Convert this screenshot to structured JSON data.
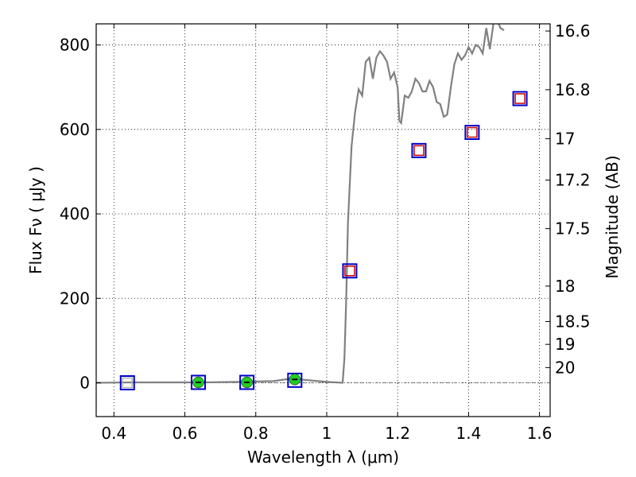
{
  "chart_data": {
    "type": "scatter",
    "xlabel": "Wavelength  λ (μm)",
    "ylabel": "Flux  Fν  ( μJy )",
    "y2label": "Magnitude (AB)",
    "xlim": [
      0.35,
      1.63
    ],
    "ylim": [
      -80,
      850
    ],
    "grid": true,
    "xticks": [
      0.4,
      0.6,
      0.8,
      1.0,
      1.2,
      1.4,
      1.6
    ],
    "xtick_labels": [
      "0.4",
      "0.6",
      "0.8",
      "1",
      "1.2",
      "1.4",
      "1.6"
    ],
    "yticks": [
      0,
      200,
      400,
      600,
      800
    ],
    "ytick_labels": [
      "0",
      "200",
      "400",
      "600",
      "800"
    ],
    "y2ticks": [
      {
        "label": "16.6",
        "flux": 833
      },
      {
        "label": "16.8",
        "flux": 694
      },
      {
        "label": "17",
        "flux": 578
      },
      {
        "label": "17.2",
        "flux": 480
      },
      {
        "label": "17.5",
        "flux": 365
      },
      {
        "label": "18",
        "flux": 229
      },
      {
        "label": "18.5",
        "flux": 145
      },
      {
        "label": "19",
        "flux": 91
      },
      {
        "label": "20",
        "flux": 36
      }
    ],
    "series": [
      {
        "kind": "line",
        "color": "#808080",
        "x": [
          0.35,
          0.45,
          0.55,
          0.65,
          0.75,
          0.85,
          0.9,
          0.95,
          1.0,
          1.045,
          1.05,
          1.055,
          1.06,
          1.07,
          1.08,
          1.09,
          1.1,
          1.11,
          1.12,
          1.13,
          1.14,
          1.15,
          1.16,
          1.17,
          1.18,
          1.19,
          1.2,
          1.205,
          1.21,
          1.22,
          1.23,
          1.24,
          1.25,
          1.26,
          1.27,
          1.28,
          1.29,
          1.3,
          1.31,
          1.32,
          1.33,
          1.34,
          1.35,
          1.36,
          1.37,
          1.38,
          1.39,
          1.4,
          1.41,
          1.42,
          1.43,
          1.44,
          1.45,
          1.46,
          1.47,
          1.48,
          1.49,
          1.5
        ],
        "y": [
          0,
          1,
          1,
          1,
          2,
          4,
          10,
          6,
          2,
          0,
          60,
          200,
          380,
          560,
          640,
          695,
          680,
          760,
          770,
          720,
          770,
          785,
          775,
          760,
          720,
          735,
          700,
          620,
          615,
          680,
          675,
          690,
          720,
          710,
          690,
          690,
          715,
          700,
          665,
          660,
          630,
          635,
          700,
          755,
          780,
          765,
          775,
          795,
          780,
          800,
          795,
          780,
          840,
          790,
          850,
          860,
          840,
          835
        ]
      },
      {
        "kind": "blue-squares",
        "color": "#0000cc",
        "x": [
          0.438,
          0.638,
          0.775,
          0.91,
          1.065,
          1.26,
          1.41,
          1.545
        ],
        "y": [
          0,
          1,
          1,
          6,
          265,
          550,
          593,
          673
        ]
      },
      {
        "kind": "red-squares",
        "color": "#cc0000",
        "x": [
          1.065,
          1.26,
          1.41,
          1.545
        ],
        "y": [
          265,
          550,
          593,
          673
        ]
      },
      {
        "kind": "gray-squares",
        "color": "#b0b0b0",
        "x": [
          0.438
        ],
        "y": [
          0
        ]
      },
      {
        "kind": "green-points",
        "color": "#22cc22",
        "x": [
          0.638,
          0.775,
          0.91
        ],
        "y": [
          1,
          1,
          8
        ]
      }
    ]
  }
}
